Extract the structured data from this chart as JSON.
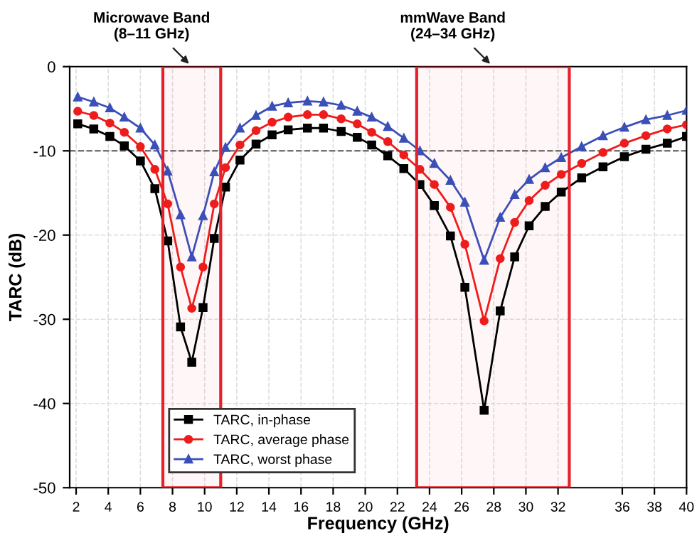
{
  "chart_data": {
    "type": "line",
    "xlabel": "Frequency (GHz)",
    "ylabel": "TARC (dB)",
    "x": [
      2.1,
      3.1,
      4.1,
      5.0,
      6.0,
      6.9,
      7.7,
      8.5,
      9.2,
      9.9,
      10.6,
      11.3,
      12.2,
      13.2,
      14.2,
      15.2,
      16.4,
      17.4,
      18.5,
      19.5,
      20.4,
      21.4,
      22.4,
      23.4,
      24.3,
      25.3,
      26.2,
      27.4,
      28.4,
      29.3,
      30.2,
      31.2,
      32.2,
      33.47,
      34.8,
      36.13,
      37.47,
      38.8,
      40.0
    ],
    "series": [
      {
        "name": "TARC, in-phase",
        "color": "#000000",
        "marker": "square",
        "values": [
          -6.8,
          -7.4,
          -8.3,
          -9.4,
          -11.2,
          -14.5,
          -20.7,
          -30.9,
          -35.1,
          -28.6,
          -20.4,
          -14.3,
          -11.1,
          -9.2,
          -8.1,
          -7.5,
          -7.3,
          -7.3,
          -7.7,
          -8.4,
          -9.3,
          -10.6,
          -12.1,
          -14.0,
          -16.5,
          -20.1,
          -26.2,
          -40.8,
          -29.0,
          -22.6,
          -18.9,
          -16.6,
          -14.9,
          -13.2,
          -11.9,
          -10.7,
          -9.8,
          -9.1,
          -8.3
        ]
      },
      {
        "name": "TARC, average phase",
        "color": "#ee1c1c",
        "marker": "circle",
        "values": [
          -5.3,
          -5.8,
          -6.7,
          -7.8,
          -9.5,
          -12.2,
          -16.3,
          -23.8,
          -28.7,
          -23.8,
          -16.3,
          -12.0,
          -9.3,
          -7.6,
          -6.6,
          -6.0,
          -5.7,
          -5.7,
          -6.2,
          -6.8,
          -7.8,
          -8.9,
          -10.5,
          -12.2,
          -14.0,
          -16.7,
          -21.1,
          -30.2,
          -22.8,
          -18.5,
          -15.9,
          -14.1,
          -12.8,
          -11.5,
          -10.2,
          -9.1,
          -8.2,
          -7.4,
          -6.9
        ]
      },
      {
        "name": "TARC, worst phase",
        "color": "#3b4fb8",
        "marker": "triangle",
        "values": [
          -3.6,
          -4.2,
          -4.9,
          -6.0,
          -7.3,
          -9.3,
          -12.4,
          -17.6,
          -22.6,
          -17.7,
          -12.5,
          -9.6,
          -7.3,
          -5.8,
          -4.7,
          -4.3,
          -4.1,
          -4.2,
          -4.6,
          -5.3,
          -6.0,
          -7.1,
          -8.5,
          -10.0,
          -11.5,
          -13.5,
          -16.1,
          -23.0,
          -17.9,
          -15.2,
          -13.4,
          -12.0,
          -10.8,
          -9.5,
          -8.2,
          -7.2,
          -6.3,
          -5.8,
          -5.2
        ]
      }
    ],
    "xlim": [
      1.6,
      40.0
    ],
    "xticks": [
      2,
      4,
      6,
      8,
      10,
      12,
      14,
      16,
      18,
      20,
      22,
      24,
      26,
      28,
      30,
      32,
      36,
      38,
      40
    ],
    "ylim": [
      -50,
      0
    ],
    "yticks": [
      -50,
      -40,
      -30,
      -20,
      -10,
      0
    ],
    "grid": true,
    "legend": "bottom left",
    "line_style": "solid",
    "ref_lines": [
      {
        "axis": "y",
        "value": -10,
        "color": "#555555",
        "line_style": "dashed"
      }
    ],
    "bands": [
      {
        "axis": "x",
        "from": 7.4,
        "to": 11.0,
        "label": "Microwave Band\n(8–11 GHz)",
        "color": "#e8202a"
      },
      {
        "axis": "x",
        "from": 23.2,
        "to": 32.7,
        "label": "mmWave Band\n(24–34 GHz)",
        "color": "#e8202a"
      }
    ]
  }
}
